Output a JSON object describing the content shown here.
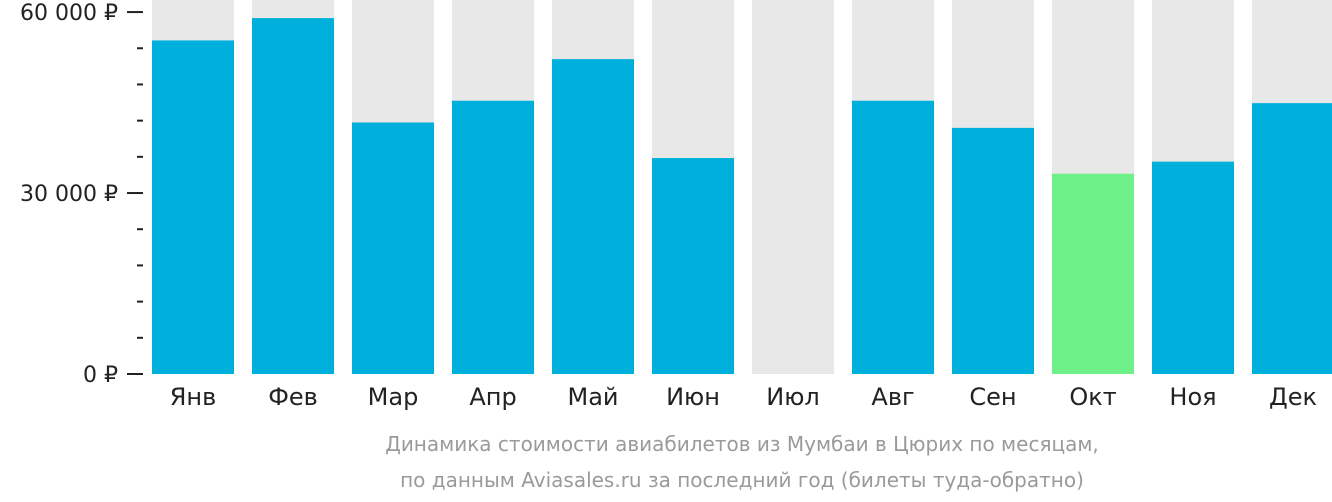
{
  "chart_data": {
    "type": "bar",
    "categories": [
      "Янв",
      "Фев",
      "Мар",
      "Апр",
      "Май",
      "Июн",
      "Июл",
      "Авг",
      "Сен",
      "Окт",
      "Ноя",
      "Дек"
    ],
    "values": [
      55300,
      59000,
      41700,
      45300,
      52200,
      35800,
      null,
      45300,
      40800,
      33200,
      35200,
      44900
    ],
    "highlight_index": 9,
    "ylim": [
      0,
      62000
    ],
    "yticks": [
      {
        "value": 0,
        "label": "0 ₽"
      },
      {
        "value": 30000,
        "label": "30 000 ₽"
      },
      {
        "value": 60000,
        "label": "60 000 ₽"
      }
    ],
    "minor_tick_step": 6000,
    "caption_lines": [
      "Динамика стоимости авиабилетов из Мумбаи в Цюрих по месяцам,",
      "по данным Aviasales.ru за последний год (билеты туда-обратно)"
    ],
    "colors": {
      "bar": "#00b0dc",
      "highlight": "#6df088",
      "background_bar": "#e8e8e8",
      "axis": "#222222",
      "text": "#222222",
      "caption": "#9a9a9a"
    }
  }
}
